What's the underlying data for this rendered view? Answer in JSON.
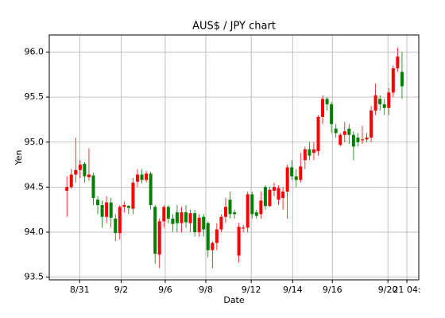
{
  "chart_data": {
    "type": "candlestick",
    "title": "AUS$ / JPY chart",
    "xlabel": "Date",
    "ylabel": "Yen",
    "up_color": "#ff0000",
    "down_color": "#008000",
    "grid": true,
    "xlim": [
      -4.0,
      79.8
    ],
    "xticks": [
      {
        "value": 2.9,
        "label": "8/31"
      },
      {
        "value": 12.3,
        "label": "9/2"
      },
      {
        "value": 22.3,
        "label": "9/6"
      },
      {
        "value": 31.5,
        "label": "9/8"
      },
      {
        "value": 41.8,
        "label": "9/12"
      },
      {
        "value": 51.2,
        "label": "9/14"
      },
      {
        "value": 60.2,
        "label": "9/16"
      },
      {
        "value": 72.8,
        "label": "9/20"
      },
      {
        "value": 77.1,
        "label": "21 04:"
      }
    ],
    "ylim": [
      93.47,
      96.19
    ],
    "yticks": [
      93.5,
      {
        "value": 94,
        "label": "94.0"
      },
      94.5,
      {
        "value": 95,
        "label": "95.0"
      },
      95.5,
      {
        "value": 96,
        "label": "96.0"
      }
    ],
    "open": [
      94.46,
      94.5,
      94.64,
      94.69,
      94.76,
      94.61,
      94.63,
      94.36,
      94.3,
      94.17,
      94.33,
      94.15,
      93.99,
      94.28,
      94.29,
      94.26,
      94.56,
      94.64,
      94.58,
      94.65,
      94.28,
      93.75,
      94.12,
      94.28,
      94.15,
      94.22,
      94.1,
      94.22,
      94.1,
      94.21,
      94.0,
      94.17,
      94.1,
      93.8,
      93.88,
      94.03,
      94.17,
      94.36,
      94.22,
      93.74,
      94.04,
      94.05,
      94.42,
      94.22,
      94.2,
      94.5,
      94.29,
      94.46,
      94.36,
      94.38,
      94.45,
      94.72,
      94.62,
      94.58,
      94.8,
      94.92,
      94.88,
      94.9,
      95.28,
      95.48,
      95.42,
      95.15,
      94.97,
      95.08,
      95.15,
      95.08,
      95.05,
      95.02,
      95.03,
      95.05,
      95.35,
      95.48,
      95.42,
      95.38,
      95.55,
      95.82,
      95.78
    ],
    "high": [
      94.62,
      94.7,
      95.05,
      94.8,
      94.78,
      94.93,
      94.66,
      94.4,
      94.35,
      94.4,
      94.38,
      94.2,
      94.3,
      94.34,
      94.3,
      94.6,
      94.7,
      94.7,
      94.68,
      94.67,
      94.3,
      94.15,
      94.3,
      94.3,
      94.2,
      94.3,
      94.28,
      94.3,
      94.25,
      94.25,
      94.2,
      94.2,
      94.12,
      93.9,
      94.1,
      94.2,
      94.38,
      94.45,
      94.25,
      94.1,
      94.08,
      94.45,
      94.45,
      94.25,
      94.45,
      94.52,
      94.5,
      94.55,
      94.52,
      94.5,
      94.75,
      94.8,
      94.7,
      94.88,
      94.95,
      95.0,
      95.0,
      95.3,
      95.52,
      95.5,
      95.45,
      95.2,
      95.1,
      95.22,
      95.2,
      95.12,
      95.1,
      95.18,
      95.1,
      95.4,
      95.65,
      95.52,
      95.48,
      95.6,
      95.85,
      96.05,
      96.0
    ],
    "low": [
      94.17,
      94.48,
      94.55,
      94.6,
      94.55,
      94.57,
      94.3,
      94.2,
      94.05,
      94.1,
      94.05,
      93.9,
      93.92,
      94.22,
      94.2,
      94.2,
      94.5,
      94.54,
      94.55,
      94.25,
      93.65,
      93.6,
      94.05,
      94.1,
      94.0,
      94.0,
      94.0,
      94.05,
      94.0,
      93.95,
      93.95,
      93.95,
      93.72,
      93.6,
      93.8,
      94.0,
      94.1,
      94.15,
      94.15,
      93.66,
      94.0,
      94.0,
      94.15,
      94.15,
      94.15,
      94.25,
      94.28,
      94.4,
      94.3,
      94.25,
      94.15,
      94.58,
      94.5,
      94.55,
      94.7,
      94.8,
      94.8,
      94.85,
      95.2,
      95.35,
      95.1,
      95.05,
      94.95,
      95.0,
      94.98,
      94.8,
      94.95,
      94.98,
      95.0,
      95.0,
      95.3,
      95.35,
      95.3,
      95.3,
      95.5,
      95.78,
      95.48
    ],
    "close": [
      94.5,
      94.64,
      94.69,
      94.75,
      94.62,
      94.64,
      94.38,
      94.3,
      94.17,
      94.33,
      94.16,
      93.99,
      94.28,
      94.3,
      94.27,
      94.55,
      94.64,
      94.58,
      94.65,
      94.3,
      93.76,
      94.12,
      94.28,
      94.15,
      94.09,
      94.1,
      94.22,
      94.11,
      94.21,
      94.0,
      94.16,
      94.03,
      93.8,
      93.88,
      94.03,
      94.17,
      94.28,
      94.2,
      94.2,
      94.06,
      94.05,
      94.42,
      94.2,
      94.18,
      94.35,
      94.29,
      94.47,
      94.5,
      94.49,
      94.45,
      94.72,
      94.62,
      94.58,
      94.73,
      94.92,
      94.85,
      94.92,
      95.28,
      95.48,
      95.42,
      95.2,
      95.1,
      95.08,
      95.12,
      95.08,
      94.95,
      95.0,
      95.03,
      95.05,
      95.35,
      95.52,
      95.42,
      95.38,
      95.55,
      95.82,
      95.95,
      95.62
    ]
  }
}
